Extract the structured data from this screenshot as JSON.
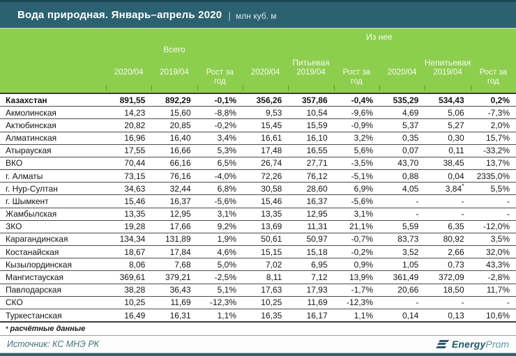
{
  "title": {
    "text": "Вода природная. Январь–апрель 2020",
    "separator": "|",
    "unit": "млн куб. м"
  },
  "header": {
    "group_total": "Всего",
    "group_of_it": "Из нее",
    "group_drinking": "Питьевая",
    "group_nondrinking": "Непитьевая"
  },
  "chart_data": {
    "type": "table",
    "title": "Вода природная. Январь–апрель 2020 | млн куб. м",
    "column_groups": [
      "Всего",
      "Из нее — Питьевая",
      "Из нее — Непитьевая"
    ],
    "columns": [
      "2020/04",
      "2019/04",
      "Рост за год",
      "2020/04",
      "2019/04",
      "Рост за год",
      "2020/04",
      "2019/04",
      "Рост за год"
    ],
    "rows": [
      {
        "name": "Казахстан",
        "bold": true,
        "values": [
          "891,55",
          "892,29",
          "-0,1%",
          "356,26",
          "357,86",
          "-0,4%",
          "535,29",
          "534,43",
          "0,2%"
        ]
      },
      {
        "name": "Акмолинская",
        "bold": false,
        "values": [
          "14,23",
          "15,60",
          "-8,8%",
          "9,53",
          "10,54",
          "-9,6%",
          "4,69",
          "5,06",
          "-7,3%"
        ]
      },
      {
        "name": "Актюбинская",
        "bold": false,
        "values": [
          "20,82",
          "20,85",
          "-0,2%",
          "15,45",
          "15,59",
          "-0,9%",
          "5,37",
          "5,27",
          "2,0%"
        ]
      },
      {
        "name": "Алматинская",
        "bold": false,
        "values": [
          "16,96",
          "16,40",
          "3,4%",
          "16,61",
          "16,10",
          "3,2%",
          "0,35",
          "0,30",
          "15,7%"
        ]
      },
      {
        "name": "Атырауская",
        "bold": false,
        "values": [
          "17,55",
          "16,66",
          "5,3%",
          "17,48",
          "16,55",
          "5,6%",
          "0,07",
          "0,11",
          "-33,2%"
        ]
      },
      {
        "name": "ВКО",
        "bold": false,
        "values": [
          "70,44",
          "66,16",
          "6,5%",
          "26,74",
          "27,71",
          "-3,5%",
          "43,70",
          "38,45",
          "13,7%"
        ]
      },
      {
        "name": "г. Алматы",
        "bold": false,
        "values": [
          "73,15",
          "76,16",
          "-4,0%",
          "72,26",
          "76,12",
          "-5,1%",
          "0,88",
          "0,04",
          "2335,0%"
        ]
      },
      {
        "name": "г. Нур-Султан",
        "bold": false,
        "values": [
          "34,63",
          "32,44",
          "6,8%",
          "30,58",
          "28,60",
          "6,9%",
          "4,05",
          "3,84*",
          "5,5%"
        ]
      },
      {
        "name": "г. Шымкент",
        "bold": false,
        "values": [
          "15,46",
          "16,37",
          "-5,6%",
          "15,46",
          "16,37",
          "-5,6%",
          "-",
          "-",
          "-"
        ]
      },
      {
        "name": "Жамбылская",
        "bold": false,
        "values": [
          "13,35",
          "12,95",
          "3,1%",
          "13,35",
          "12,95",
          "3,1%",
          "-",
          "-",
          "-"
        ]
      },
      {
        "name": "ЗКО",
        "bold": false,
        "values": [
          "19,28",
          "17,66",
          "9,2%",
          "13,69",
          "11,31",
          "21,1%",
          "5,59",
          "6,35",
          "-12,0%"
        ]
      },
      {
        "name": "Карагандинская",
        "bold": false,
        "values": [
          "134,34",
          "131,89",
          "1,9%",
          "50,61",
          "50,97",
          "-0,7%",
          "83,73",
          "80,92",
          "3,5%"
        ]
      },
      {
        "name": "Костанайская",
        "bold": false,
        "values": [
          "18,67",
          "17,84",
          "4,6%",
          "15,15",
          "15,18",
          "-0,2%",
          "3,52",
          "2,66",
          "32,0%"
        ]
      },
      {
        "name": "Кызылординская",
        "bold": false,
        "values": [
          "8,06",
          "7,68",
          "5,0%",
          "7,02",
          "6,95",
          "0,9%",
          "1,05",
          "0,73",
          "43,3%"
        ]
      },
      {
        "name": "Мангистауская",
        "bold": false,
        "values": [
          "369,61",
          "379,21",
          "-2,5%",
          "8,11",
          "7,12",
          "13,9%",
          "361,49",
          "372,09",
          "-2,8%"
        ]
      },
      {
        "name": "Павлодарская",
        "bold": false,
        "values": [
          "38,28",
          "36,43",
          "5,1%",
          "17,63",
          "17,93",
          "-1,7%",
          "20,66",
          "18,50",
          "11,7%"
        ]
      },
      {
        "name": "СКО",
        "bold": false,
        "values": [
          "10,25",
          "11,69",
          "-12,3%",
          "10,25",
          "11,69",
          "-12,3%",
          "-",
          "-",
          "-"
        ]
      },
      {
        "name": "Туркестанская",
        "bold": false,
        "values": [
          "16,49",
          "16,31",
          "1,1%",
          "16,35",
          "16,17",
          "1,1%",
          "0,14",
          "0,13",
          "10,6%"
        ]
      }
    ]
  },
  "footnote": {
    "marker": "*",
    "text": "расчётные данные"
  },
  "source": "Источник: КС МНЭ РК",
  "logo": {
    "part1": "Energy",
    "part2": "Prom"
  },
  "colors": {
    "teal": "#2c6171",
    "teal_dark": "#1c4754",
    "green": "#8dce4f",
    "text": "#141414"
  }
}
